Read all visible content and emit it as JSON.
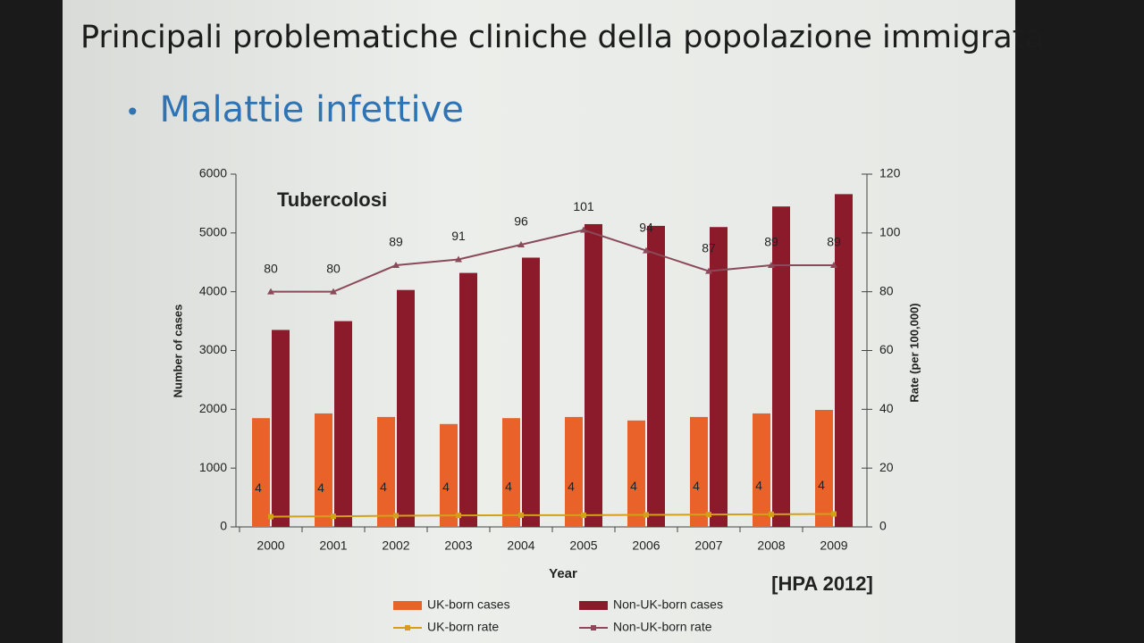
{
  "slide": {
    "title": "Principali problematiche cliniche della popolazione immigrata",
    "bullet": "Malattie infettive",
    "source": "[HPA 2012]"
  },
  "chart_data": {
    "type": "combo",
    "annotation": "Tubercolosi",
    "x_label": "Year",
    "y_label": "Number of cases",
    "y2_label": "Rate (per 100,000)",
    "categories": [
      "2000",
      "2001",
      "2002",
      "2003",
      "2004",
      "2005",
      "2006",
      "2007",
      "2008",
      "2009"
    ],
    "ylim": [
      0,
      6000
    ],
    "yticks": [
      0,
      1000,
      2000,
      3000,
      4000,
      5000,
      6000
    ],
    "y2lim": [
      0,
      120
    ],
    "y2ticks": [
      0,
      20,
      40,
      60,
      80,
      100,
      120
    ],
    "legend": "bottom",
    "series": [
      {
        "name": "UK-born cases",
        "type": "bar",
        "color": "#e8622a",
        "values": [
          1850,
          1930,
          1870,
          1750,
          1850,
          1870,
          1810,
          1870,
          1930,
          1990
        ]
      },
      {
        "name": "Non-UK-born cases",
        "type": "bar",
        "color": "#8b1a2b",
        "values": [
          3350,
          3500,
          4030,
          4320,
          4580,
          5150,
          5120,
          5100,
          5450,
          5660
        ]
      },
      {
        "name": "UK-born rate",
        "type": "line",
        "axis": "y2",
        "color": "#d4a017",
        "marker": "square",
        "values": [
          3.5,
          3.6,
          3.8,
          3.9,
          4.0,
          4.0,
          4.1,
          4.2,
          4.3,
          4.4
        ],
        "value_labels": [
          "4",
          "4",
          "4",
          "4",
          "4",
          "4",
          "4",
          "4",
          "4",
          "4"
        ]
      },
      {
        "name": "Non-UK-born rate",
        "type": "line",
        "axis": "y2",
        "color": "#8a4a5a",
        "marker": "triangle",
        "values": [
          80,
          80,
          89,
          91,
          96,
          101,
          94,
          87,
          89,
          89
        ]
      }
    ]
  }
}
